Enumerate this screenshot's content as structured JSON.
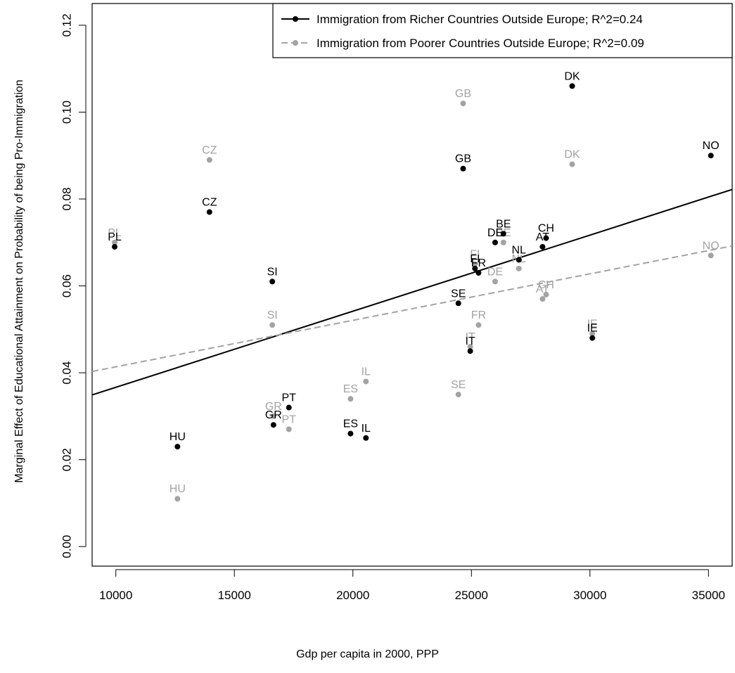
{
  "chart_data": {
    "type": "scatter",
    "xlabel": "Gdp per capita in 2000, PPP",
    "ylabel": "Marginal Effect of Educational Attainment on Probability of being Pro-Immigration",
    "xlim": [
      9000,
      36000
    ],
    "ylim": [
      -0.0045,
      0.125
    ],
    "x_ticks": [
      "10000",
      "15000",
      "20000",
      "25000",
      "30000",
      "35000"
    ],
    "y_ticks": [
      "0.00",
      "0.02",
      "0.04",
      "0.06",
      "0.08",
      "0.10",
      "0.12"
    ],
    "x_tick_values": [
      10000,
      15000,
      20000,
      25000,
      30000,
      35000
    ],
    "y_tick_values": [
      0.0,
      0.02,
      0.04,
      0.06,
      0.08,
      0.1,
      0.12
    ],
    "grid": false,
    "legend_position": "top-right",
    "series": [
      {
        "name": "Immigration from Richer Countries Outside Europe; R^2=0.24",
        "color": "#000000",
        "line_style": "solid",
        "fit": {
          "x": [
            9000,
            36000
          ],
          "y": [
            0.0349,
            0.0822
          ]
        },
        "points": [
          {
            "label": "PL",
            "x": 9950,
            "y": 0.069
          },
          {
            "label": "HU",
            "x": 12600,
            "y": 0.023
          },
          {
            "label": "CZ",
            "x": 13950,
            "y": 0.077
          },
          {
            "label": "SI",
            "x": 16600,
            "y": 0.061
          },
          {
            "label": "GR",
            "x": 16650,
            "y": 0.028
          },
          {
            "label": "PT",
            "x": 17300,
            "y": 0.032
          },
          {
            "label": "ES",
            "x": 19900,
            "y": 0.026
          },
          {
            "label": "IL",
            "x": 20550,
            "y": 0.025
          },
          {
            "label": "SE",
            "x": 24450,
            "y": 0.056
          },
          {
            "label": "GB",
            "x": 24650,
            "y": 0.087
          },
          {
            "label": "IT",
            "x": 24950,
            "y": 0.045
          },
          {
            "label": "FI",
            "x": 25150,
            "y": 0.064
          },
          {
            "label": "FR",
            "x": 25300,
            "y": 0.063
          },
          {
            "label": "DE",
            "x": 26000,
            "y": 0.07
          },
          {
            "label": "BE",
            "x": 26350,
            "y": 0.072
          },
          {
            "label": "NL",
            "x": 27000,
            "y": 0.066
          },
          {
            "label": "AT",
            "x": 28000,
            "y": 0.069
          },
          {
            "label": "CH",
            "x": 28150,
            "y": 0.071
          },
          {
            "label": "DK",
            "x": 29250,
            "y": 0.106
          },
          {
            "label": "IE",
            "x": 30100,
            "y": 0.048
          },
          {
            "label": "NO",
            "x": 35100,
            "y": 0.09
          }
        ]
      },
      {
        "name": "Immigration from Poorer Countries Outside Europe; R^2=0.09",
        "color": "#a3a3a3",
        "line_style": "dashed",
        "fit": {
          "x": [
            9000,
            36000
          ],
          "y": [
            0.0403,
            0.0692
          ]
        },
        "points": [
          {
            "label": "PL",
            "x": 9950,
            "y": 0.07
          },
          {
            "label": "HU",
            "x": 12600,
            "y": 0.011
          },
          {
            "label": "CZ",
            "x": 13950,
            "y": 0.089
          },
          {
            "label": "SI",
            "x": 16600,
            "y": 0.051
          },
          {
            "label": "GR",
            "x": 16650,
            "y": 0.03
          },
          {
            "label": "PT",
            "x": 17300,
            "y": 0.027
          },
          {
            "label": "ES",
            "x": 19900,
            "y": 0.034
          },
          {
            "label": "IL",
            "x": 20550,
            "y": 0.038
          },
          {
            "label": "SE",
            "x": 24450,
            "y": 0.035
          },
          {
            "label": "GB",
            "x": 24650,
            "y": 0.102
          },
          {
            "label": "IT",
            "x": 24950,
            "y": 0.046
          },
          {
            "label": "FI",
            "x": 25150,
            "y": 0.065
          },
          {
            "label": "FR",
            "x": 25300,
            "y": 0.051
          },
          {
            "label": "DE",
            "x": 26000,
            "y": 0.061
          },
          {
            "label": "BE",
            "x": 26350,
            "y": 0.07
          },
          {
            "label": "NL",
            "x": 27000,
            "y": 0.064
          },
          {
            "label": "AT",
            "x": 28000,
            "y": 0.057
          },
          {
            "label": "CH",
            "x": 28150,
            "y": 0.058
          },
          {
            "label": "DK",
            "x": 29250,
            "y": 0.088
          },
          {
            "label": "IE",
            "x": 30100,
            "y": 0.049
          },
          {
            "label": "NO",
            "x": 35100,
            "y": 0.067
          }
        ]
      }
    ]
  }
}
